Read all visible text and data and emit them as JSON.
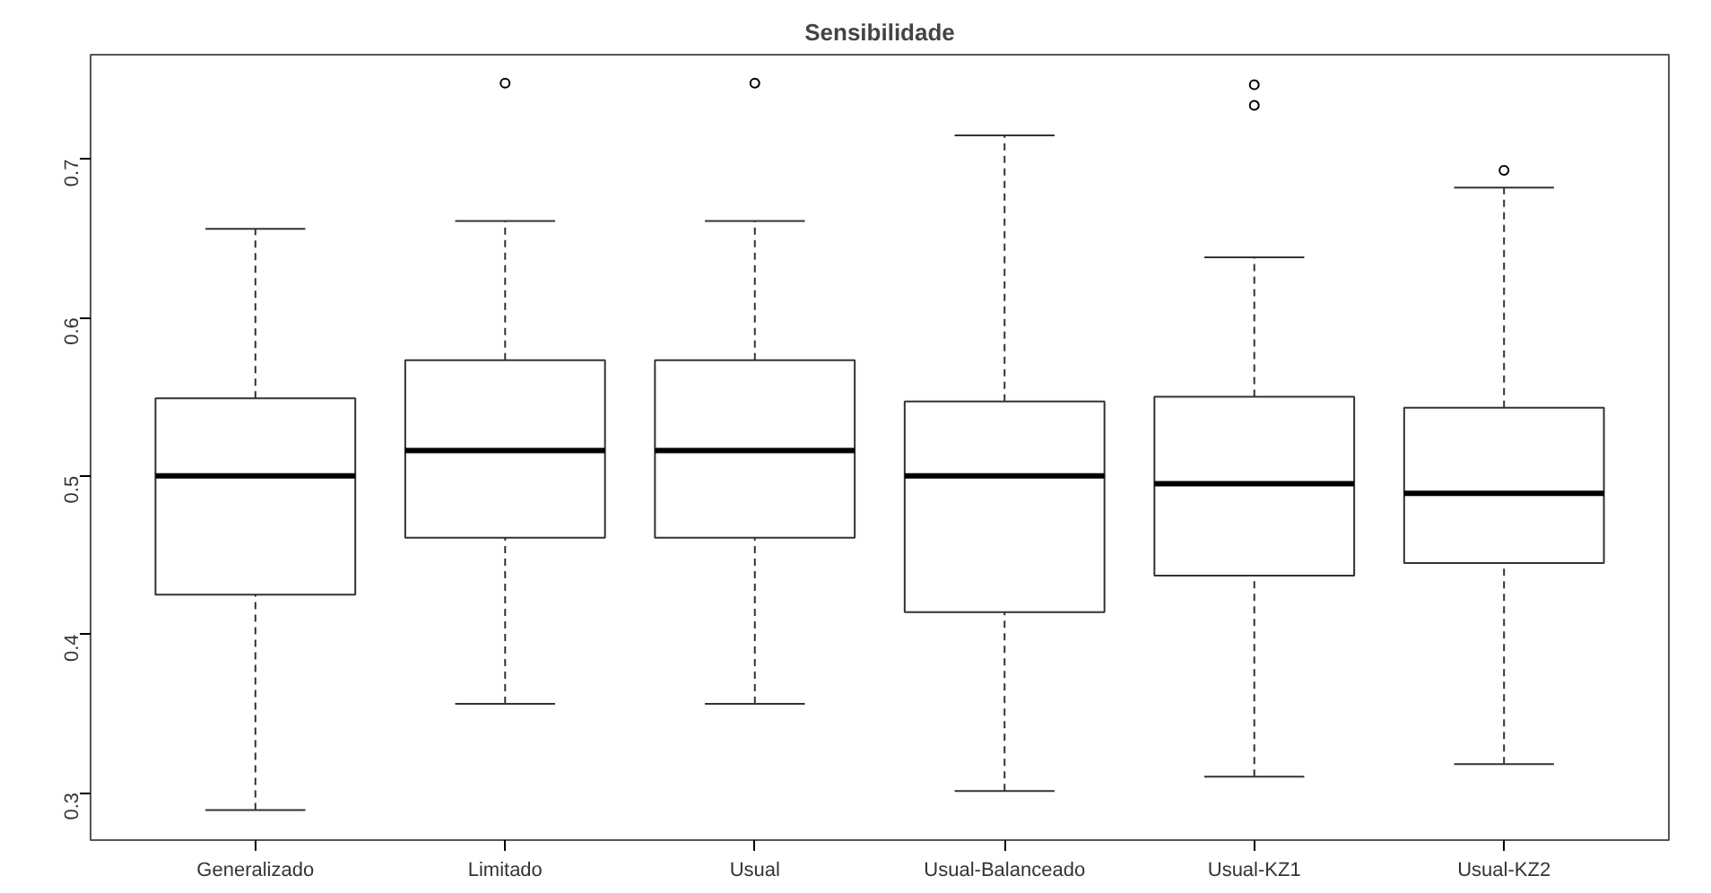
{
  "chart_data": {
    "type": "box",
    "title": "Sensibilidade",
    "categories": [
      "Generalizado",
      "Limitado",
      "Usual",
      "Usual-Balanceado",
      "Usual-KZ1",
      "Usual-KZ2"
    ],
    "boxes": [
      {
        "low": 0.289,
        "q1": 0.425,
        "median": 0.5,
        "q3": 0.549,
        "high": 0.656
      },
      {
        "low": 0.356,
        "q1": 0.461,
        "median": 0.516,
        "q3": 0.573,
        "high": 0.661,
        "outliers": [
          0.748
        ]
      },
      {
        "low": 0.356,
        "q1": 0.461,
        "median": 0.516,
        "q3": 0.573,
        "high": 0.661,
        "outliers": [
          0.748
        ]
      },
      {
        "low": 0.301,
        "q1": 0.414,
        "median": 0.5,
        "q3": 0.547,
        "high": 0.715
      },
      {
        "low": 0.31,
        "q1": 0.437,
        "median": 0.495,
        "q3": 0.55,
        "high": 0.638,
        "outliers": [
          0.747,
          0.734
        ]
      },
      {
        "low": 0.318,
        "q1": 0.445,
        "median": 0.489,
        "q3": 0.543,
        "high": 0.682,
        "outliers": [
          0.693
        ]
      }
    ],
    "ylim": [
      0.27,
      0.766
    ],
    "yticks": [
      0.3,
      0.4,
      0.5,
      0.6,
      0.7
    ],
    "grid": false
  }
}
